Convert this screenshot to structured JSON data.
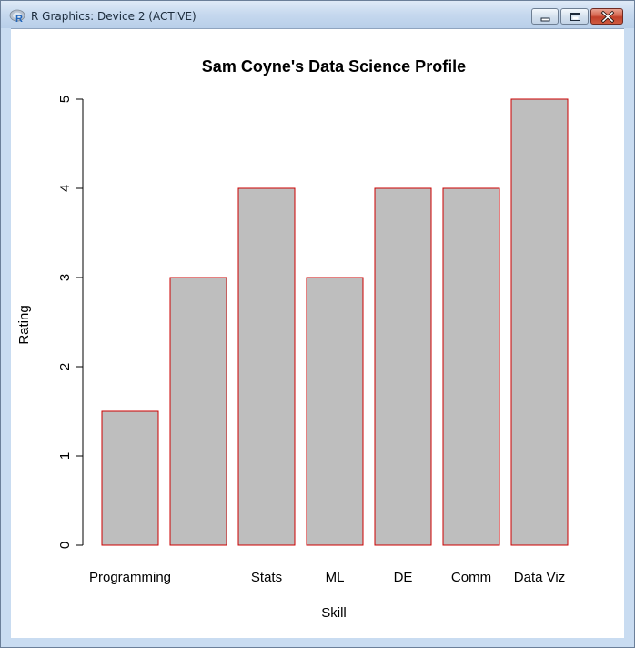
{
  "window": {
    "title": "R Graphics: Device 2 (ACTIVE)",
    "app_icon": "r-logo-icon",
    "controls": [
      "minimize-icon",
      "maximize-icon",
      "close-icon"
    ]
  },
  "chart_data": {
    "type": "bar",
    "title": "Sam Coyne's Data Science Profile",
    "xlabel": "Skill",
    "ylabel": "Rating",
    "categories": [
      "Programming",
      "",
      "Stats",
      "ML",
      "DE",
      "Comm",
      "Data Viz"
    ],
    "values": [
      1.5,
      3,
      4,
      3,
      4,
      4,
      5
    ],
    "ylim": [
      0,
      5
    ],
    "yticks": [
      "0",
      "1",
      "2",
      "3",
      "4",
      "5"
    ],
    "bar_fill": "#bebebe",
    "bar_border": "#cc0000",
    "grid": false,
    "legend": "none"
  }
}
